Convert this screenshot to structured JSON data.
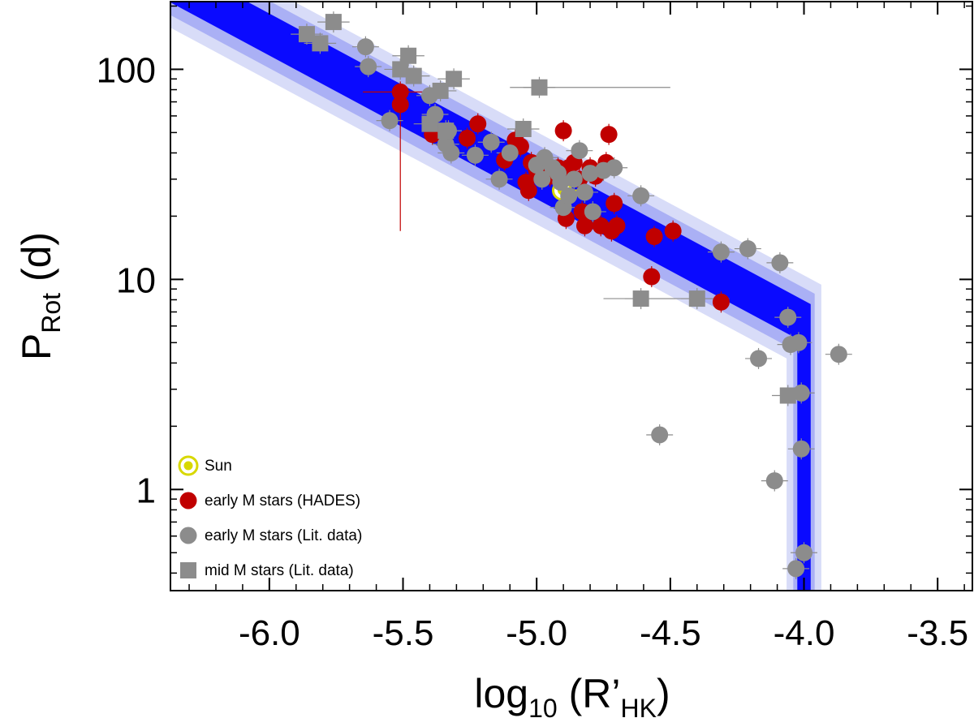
{
  "chart_data": {
    "type": "scatter",
    "xaxis": {
      "label_main": "log",
      "label_sub": "10",
      "label_rest_open": " (R’",
      "label_rest_sub": "HK",
      "label_rest_close": ")",
      "range": [
        -6.37,
        -3.37
      ],
      "ticks": [
        -6.0,
        -5.5,
        -5.0,
        -4.5,
        -4.0,
        -3.5
      ],
      "tick_labels": [
        "-6.0",
        "-5.5",
        "-5.0",
        "-4.5",
        "-4.0",
        "-3.5"
      ],
      "scale": "linear"
    },
    "yaxis": {
      "label_main": "P",
      "label_sub": "Rot",
      "label_rest": " (d)",
      "range": [
        0.33,
        210
      ],
      "ticks": [
        1,
        10,
        100
      ],
      "tick_labels": [
        "1",
        "10",
        "100"
      ],
      "scale": "log"
    },
    "colors": {
      "band_core": "#0a0aff",
      "band_inner": "#aab0f5",
      "band_outer": "#d8dcf8",
      "hades": "#c00000",
      "lit": "#8c8c8c",
      "sun_fill": "#d8d800",
      "sun_ring": "#d8d800",
      "errorbar_lit": "#8c8c8c",
      "errorbar_hades": "#c00000"
    },
    "relation_band": {
      "description": "log-linear relation P vs R'HK with vertical saturation branch",
      "points": [
        [
          -6.37,
          262
        ],
        [
          -4.02,
          6.5
        ]
      ],
      "vertical_x": -4.0,
      "core_halfwidth_dex": 0.1,
      "inner_halfwidth_dex": 0.16,
      "outer_halfwidth_dex": 0.22,
      "vertical_core_halfwidth": 0.025,
      "vertical_inner_halfwidth": 0.04,
      "vertical_outer_halfwidth": 0.065
    },
    "series": [
      {
        "name": "Sun",
        "marker": "sun",
        "points": [
          [
            -4.905,
            26.5
          ]
        ],
        "xerr": [
          0.08
        ]
      },
      {
        "name": "early M stars (HADES)",
        "marker": "circle",
        "color": "hades",
        "points": [
          [
            -5.51,
            68
          ],
          [
            -5.51,
            78
          ],
          [
            -5.39,
            49
          ],
          [
            -5.26,
            47
          ],
          [
            -5.22,
            55
          ],
          [
            -5.12,
            37
          ],
          [
            -5.08,
            46
          ],
          [
            -5.06,
            43
          ],
          [
            -5.04,
            29
          ],
          [
            -5.03,
            26.5
          ],
          [
            -5.02,
            36
          ],
          [
            -5.0,
            33
          ],
          [
            -4.96,
            32
          ],
          [
            -4.92,
            34
          ],
          [
            -4.9,
            51
          ],
          [
            -4.88,
            34
          ],
          [
            -4.86,
            36
          ],
          [
            -4.84,
            30
          ],
          [
            -4.83,
            21
          ],
          [
            -4.82,
            18
          ],
          [
            -4.8,
            34
          ],
          [
            -4.78,
            31
          ],
          [
            -4.76,
            18
          ],
          [
            -4.74,
            36
          ],
          [
            -4.72,
            17
          ],
          [
            -4.71,
            23
          ],
          [
            -4.7,
            18
          ],
          [
            -4.73,
            49
          ],
          [
            -4.89,
            19.5
          ],
          [
            -4.56,
            16
          ],
          [
            -4.49,
            17
          ],
          [
            -4.57,
            10.3
          ],
          [
            -4.31,
            7.8
          ],
          [
            -4.95,
            31
          ]
        ],
        "xerr": [
          0.03
        ],
        "big_err": {
          "x": -5.51,
          "y": 68,
          "ylo": 17,
          "yhi": 78,
          "xlo": -5.65,
          "xhi": -5.38
        }
      },
      {
        "name": "early M stars (Lit. data)",
        "marker": "circle",
        "color": "lit",
        "points": [
          [
            -5.64,
            128
          ],
          [
            -5.63,
            103
          ],
          [
            -5.55,
            57
          ],
          [
            -5.4,
            75
          ],
          [
            -5.38,
            61
          ],
          [
            -5.34,
            44
          ],
          [
            -5.33,
            51
          ],
          [
            -5.32,
            40
          ],
          [
            -5.23,
            39
          ],
          [
            -5.17,
            45
          ],
          [
            -5.14,
            30
          ],
          [
            -5.1,
            40
          ],
          [
            -5.0,
            35
          ],
          [
            -4.98,
            30
          ],
          [
            -4.97,
            38
          ],
          [
            -4.94,
            34
          ],
          [
            -4.92,
            32
          ],
          [
            -4.9,
            22
          ],
          [
            -4.88,
            25
          ],
          [
            -4.86,
            30
          ],
          [
            -4.84,
            41
          ],
          [
            -4.82,
            26
          ],
          [
            -4.8,
            32
          ],
          [
            -4.79,
            21
          ],
          [
            -4.75,
            33
          ],
          [
            -4.71,
            34
          ],
          [
            -4.61,
            25
          ],
          [
            -4.31,
            13.5
          ],
          [
            -4.21,
            14
          ],
          [
            -4.09,
            12
          ],
          [
            -4.06,
            6.6
          ],
          [
            -4.05,
            4.9
          ],
          [
            -4.02,
            5
          ],
          [
            -4.17,
            4.2
          ],
          [
            -3.87,
            4.4
          ],
          [
            -4.54,
            1.82
          ],
          [
            -4.11,
            1.1
          ],
          [
            -4.01,
            2.88
          ],
          [
            -4.01,
            1.56
          ],
          [
            -4.0,
            0.5
          ],
          [
            -4.03,
            0.42
          ],
          [
            -4.91,
            29
          ]
        ],
        "xerr": [
          0.05
        ]
      },
      {
        "name": "mid M stars (Lit. data)",
        "marker": "square",
        "color": "lit",
        "points": [
          [
            -5.86,
            147
          ],
          [
            -5.81,
            133
          ],
          [
            -5.76,
            168
          ],
          [
            -5.51,
            100
          ],
          [
            -5.48,
            116
          ],
          [
            -5.46,
            93
          ],
          [
            -5.36,
            79
          ],
          [
            -5.34,
            51
          ],
          [
            -5.31,
            90
          ],
          [
            -5.05,
            52
          ],
          [
            -4.99,
            82
          ],
          [
            -4.61,
            8.1
          ],
          [
            -4.4,
            8.1
          ],
          [
            -4.06,
            2.8
          ],
          [
            -5.4,
            55
          ]
        ],
        "xerr": [
          0.06
        ],
        "wide_err": [
          {
            "x": -4.99,
            "y": 82,
            "xlo": -5.1,
            "xhi": -4.5
          },
          {
            "x": -4.61,
            "y": 8.1,
            "xlo": -4.75,
            "xhi": -4.48
          },
          {
            "x": -4.4,
            "y": 8.1,
            "xlo": -4.55,
            "xhi": -4.28
          }
        ]
      }
    ],
    "legend": {
      "position": "bottom-left",
      "entries": [
        {
          "label": "Sun",
          "marker": "sun"
        },
        {
          "label": "early M stars (HADES)",
          "marker": "circle-red"
        },
        {
          "label": "early M stars (Lit. data)",
          "marker": "circle-gray"
        },
        {
          "label": "mid M stars (Lit. data)",
          "marker": "square-gray"
        }
      ]
    }
  }
}
